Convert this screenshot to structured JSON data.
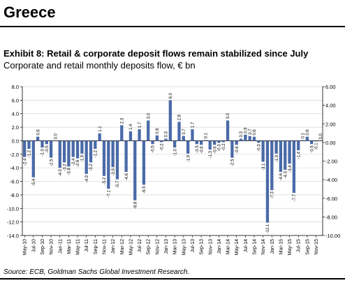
{
  "header": {
    "title": "Greece",
    "exhibit": "Exhibit 8: Retail & corporate deposit flows remain stabilized since July",
    "subtitle": "Corporate and retail monthly deposits flow, € bn"
  },
  "footer": {
    "source": "Source: ECB, Goldman Sachs Global Investment Research."
  },
  "chart_data": {
    "type": "bar",
    "title": "",
    "xlabel": "",
    "ylabel": "",
    "ylim": [
      -14,
      8
    ],
    "y2lim": [
      -10,
      6
    ],
    "y_ticks": [
      "8.0",
      "6.0",
      "4.0",
      "2.0",
      "0.0",
      "-2.0",
      "-4.0",
      "-6.0",
      "-8.0",
      "-10.0",
      "-12.0",
      "-14.0"
    ],
    "y2_ticks": [
      "6.00",
      "4.00",
      "2.00",
      "0.00",
      "-2.00",
      "-4.00",
      "-6.00",
      "-8.00",
      "-10.00"
    ],
    "grid": true,
    "bar_color": "#4a6aa8",
    "categories": [
      "May-10",
      "Jun-10",
      "Jul-10",
      "Aug-10",
      "Sep-10",
      "Oct-10",
      "Nov-10",
      "Dec-10",
      "Jan-11",
      "Feb-11",
      "Mar-11",
      "Apr-11",
      "May-11",
      "Jun-11",
      "Jul-11",
      "Aug-11",
      "Sep-11",
      "Oct-11",
      "Nov-11",
      "Dec-11",
      "Jan-12",
      "Feb-12",
      "Mar-12",
      "Apr-12",
      "May-12",
      "Jun-12",
      "Jul-12",
      "Aug-12",
      "Sep-12",
      "Oct-12",
      "Nov-12",
      "Dec-12",
      "Jan-13",
      "Feb-13",
      "Mar-13",
      "Apr-13",
      "May-13",
      "Jun-13",
      "Jul-13",
      "Aug-13",
      "Sep-13",
      "Oct-13",
      "Nov-13",
      "Dec-13",
      "Jan-14",
      "Feb-14",
      "Mar-14",
      "Apr-14",
      "May-14",
      "Jun-14",
      "Jul-14",
      "Aug-14",
      "Sep-14",
      "Oct-14",
      "Nov-14",
      "Dec-14",
      "Jan-15",
      "Feb-15",
      "Mar-15",
      "Apr-15",
      "May-15",
      "Jun-15",
      "Jul-15",
      "Aug-15",
      "Sep-15",
      "Oct-15",
      "Nov-15",
      "Dec-15"
    ],
    "x_tick_labels": [
      "May-10",
      "Jul-10",
      "Sep-10",
      "Nov-10",
      "Jan-11",
      "Mar-11",
      "May-11",
      "Jul-11",
      "Sep-11",
      "Nov-11",
      "Jan-12",
      "Mar-12",
      "May-12",
      "Jul-12",
      "Sep-12",
      "Nov-12",
      "Jan-13",
      "Mar-13",
      "May-13",
      "Jul-13",
      "Sep-13",
      "Nov-13",
      "Jan-14",
      "Mar-14",
      "May-14",
      "Jul-14",
      "Sep-14",
      "Nov-14",
      "Jan-15",
      "Mar-15",
      "May-15",
      "Jul-15",
      "Sep-15",
      "Nov-15"
    ],
    "values": [
      -2.4,
      -1.2,
      -5.4,
      0.6,
      -1.0,
      -0.5,
      -2.5,
      0.0,
      -4.0,
      -3.2,
      -3.8,
      -2.4,
      -2.6,
      -1.9,
      -4.9,
      -3.2,
      -1.2,
      1.1,
      -5.2,
      -7.1,
      -3.9,
      -5.7,
      2.3,
      -4.6,
      1.4,
      -8.8,
      1.7,
      -6.5,
      3.0,
      -0.5,
      0.8,
      -0.2,
      0.3,
      6.0,
      -1.0,
      2.8,
      0.7,
      -1.9,
      1.7,
      -0.5,
      -0.6,
      0.1,
      -1.3,
      -0.6,
      -0.3,
      -0.2,
      3.0,
      -2.5,
      -0.6,
      0.3,
      0.9,
      0.7,
      0.6,
      -0.3,
      -3.1,
      -12.1,
      -7.3,
      -1.9,
      -4.6,
      -4.3,
      -3.4,
      -7.7,
      -1.4,
      0.1,
      0.6,
      -0.5,
      -0.1,
      0.0
    ],
    "data_labels": [
      "-2.4",
      "-1.2",
      "-5.4",
      "0.6",
      "-1.0",
      "-0.5",
      "-2.5",
      "0.0",
      "-4.0",
      "-3.2",
      "-3.8",
      "-2.4",
      "-2.6",
      "-1.9",
      "-4.9",
      "-3.2",
      "-1.2",
      "1.1",
      "-5.2",
      "-7.1",
      "-3.9",
      "-5.7",
      "2.3",
      "-4.6",
      "1.4",
      "-8.8",
      "1.7",
      "-6.5",
      "3.0",
      "-0.5",
      "0.8",
      "-0.2",
      "0.3",
      "6.0",
      "-1.0",
      "2.8",
      "0.7",
      "-1.9",
      "1.7",
      "-0.5",
      "-0.6",
      "0.1",
      "-1.3",
      "-0.6",
      "-0.3",
      "-0.2",
      "3.0",
      "-2.5",
      "-0.6",
      "0.3",
      "0.9",
      "0.7",
      "0.6",
      "-0.3",
      "-3.1",
      "-12.1",
      "-7.3",
      "-1.9",
      "-4.6",
      "-4.3",
      "-3.4",
      "-7.7",
      "-1.4",
      "0.1",
      "0.6",
      "-0.5",
      "-0.1",
      "0.0"
    ]
  }
}
